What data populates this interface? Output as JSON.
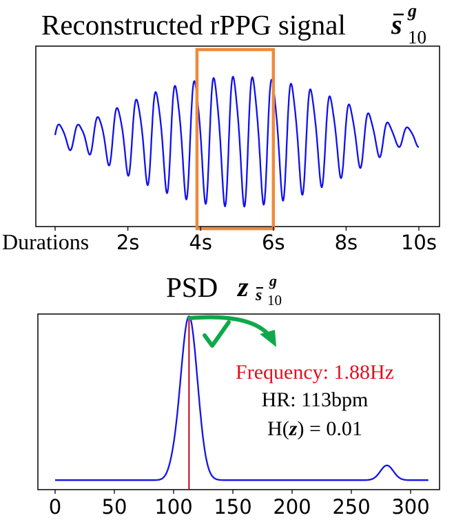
{
  "chart_data": [
    {
      "type": "line",
      "title": "Reconstructed rPPG signal",
      "title_symbol": {
        "base": "s",
        "sup": "g",
        "sub": "10"
      },
      "xlabel": "Durations",
      "x_ticks": [
        0,
        2,
        4,
        6,
        8,
        10
      ],
      "x_tick_labels": [
        "",
        "2s",
        "4s",
        "6s",
        "8s",
        "10s"
      ],
      "xlim": [
        0,
        10
      ],
      "ylim": [
        -1,
        1
      ],
      "y_ticks": [],
      "series": [
        {
          "name": "rPPG",
          "color": "#1010f0",
          "frequency_hz": 1.88,
          "start_s": 0,
          "end_s": 10,
          "envelope_start": 0.2,
          "envelope_peak": 1.0,
          "envelope_end": 0.15
        }
      ],
      "highlight": {
        "x_start_s": 3.9,
        "x_end_s": 6.0,
        "color": "#ee8a3c"
      }
    },
    {
      "type": "line",
      "title": "PSD",
      "title_symbol": {
        "base": "z",
        "sub_base": "s",
        "sub_sup": "g",
        "sub_sub": "10"
      },
      "xlabel": "",
      "x_ticks": [
        0,
        50,
        100,
        150,
        200,
        250,
        300
      ],
      "x_tick_labels": [
        "0",
        "50",
        "100",
        "150",
        "200",
        "250",
        "300"
      ],
      "xlim": [
        -10,
        320
      ],
      "ylim": [
        0,
        1
      ],
      "y_ticks": [],
      "series": [
        {
          "name": "PSD",
          "color": "#1414e6",
          "x_start": 0,
          "x_end": 315,
          "baseline": 0.02,
          "peaks": [
            {
              "center": 113,
              "height": 1.0
            },
            {
              "center": 280,
              "height": 0.09
            }
          ]
        }
      ],
      "peak_marker": {
        "x": 113,
        "color": "#c0001c"
      },
      "annotations": [
        {
          "text": "Frequency: 1.88Hz",
          "color": "#e0101e"
        },
        {
          "text": "HR: 113bpm",
          "color": "#000000"
        }
      ],
      "entropy": {
        "prefix": "H(",
        "symbol": "z",
        "suffix": ") = 0.01"
      },
      "check_color": "#10a84a",
      "arrow_color": "#10a84a"
    }
  ]
}
